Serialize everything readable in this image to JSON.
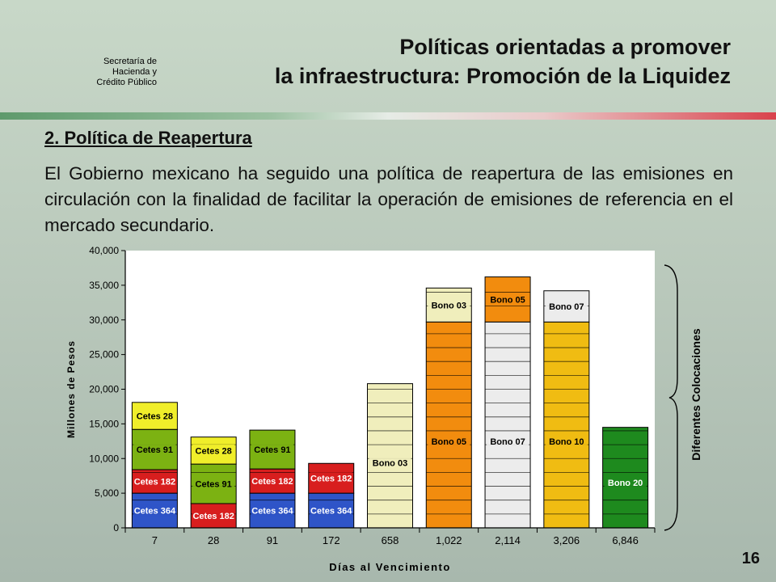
{
  "header": {
    "agency_lines": [
      "Secretaría de",
      "Hacienda y",
      "Crédito Público"
    ],
    "title_lines": [
      "Políticas orientadas a promover",
      "la infraestructura: Promoción de la Liquidez"
    ]
  },
  "section": {
    "subtitle": "2. Política de Reapertura",
    "body": "El Gobierno mexicano ha seguido una política de reapertura de las emisiones en circulación con la finalidad de facilitar la operación de emisiones de referencia en el mercado secundario."
  },
  "page_number": "16",
  "chart_data": {
    "type": "bar",
    "stacked": true,
    "xlabel": "Días al Vencimiento",
    "ylabel": "Millones de Pesos",
    "ylim": [
      0,
      40000
    ],
    "yticks": [
      "0",
      "5,000",
      "10,000",
      "15,000",
      "20,000",
      "25,000",
      "30,000",
      "35,000",
      "40,000"
    ],
    "categories": [
      "7",
      "28",
      "91",
      "172",
      "658",
      "1,022",
      "2,114",
      "3,206",
      "6,846"
    ],
    "bars": [
      {
        "category": "7",
        "segments": [
          {
            "label": "Cetes 364",
            "value": 5000,
            "color": "#2f55c8"
          },
          {
            "label": "Cetes 182",
            "value": 3400,
            "color": "#d81e1e"
          },
          {
            "label": "Cetes 91",
            "value": 5800,
            "color": "#7cb212"
          },
          {
            "label": "Cetes 28",
            "value": 3900,
            "color": "#f0ee2a"
          }
        ]
      },
      {
        "category": "28",
        "segments": [
          {
            "label": "Cetes 182",
            "value": 3500,
            "color": "#d81e1e"
          },
          {
            "label": "Cetes 91",
            "value": 5700,
            "color": "#7cb212"
          },
          {
            "label": "Cetes 28",
            "value": 3900,
            "color": "#f0ee2a"
          }
        ]
      },
      {
        "category": "91",
        "segments": [
          {
            "label": "Cetes 364",
            "value": 5000,
            "color": "#2f55c8"
          },
          {
            "label": "Cetes 182",
            "value": 3500,
            "color": "#d81e1e"
          },
          {
            "label": "Cetes 91",
            "value": 5600,
            "color": "#7cb212"
          }
        ]
      },
      {
        "category": "172",
        "segments": [
          {
            "label": "Cetes 364",
            "value": 5000,
            "color": "#2f55c8"
          },
          {
            "label": "Cetes 182",
            "value": 4300,
            "color": "#d81e1e"
          }
        ]
      },
      {
        "category": "658",
        "segments": [
          {
            "label": "Bono 03",
            "value": 20800,
            "color": "#f0eebc"
          }
        ]
      },
      {
        "category": "1,022",
        "segments": [
          {
            "label": "Bono 05",
            "value": 29700,
            "color": "#f28c0e"
          },
          {
            "label": "Bono 03",
            "value": 4900,
            "color": "#f0eebc"
          }
        ]
      },
      {
        "category": "2,114",
        "segments": [
          {
            "label": "Bono 07",
            "value": 29700,
            "color": "#ececec"
          },
          {
            "label": "Bono 05",
            "value": 6500,
            "color": "#f28c0e"
          }
        ]
      },
      {
        "category": "3,206",
        "segments": [
          {
            "label": "Bono 10",
            "value": 29700,
            "color": "#f0bc12"
          },
          {
            "label": "Bono 07",
            "value": 4500,
            "color": "#ececec"
          }
        ]
      },
      {
        "category": "6,846",
        "segments": [
          {
            "label": "Bono 20",
            "value": 14500,
            "color": "#1e8a1e"
          }
        ]
      }
    ],
    "annotation": "Diferentes Colocaciones"
  }
}
